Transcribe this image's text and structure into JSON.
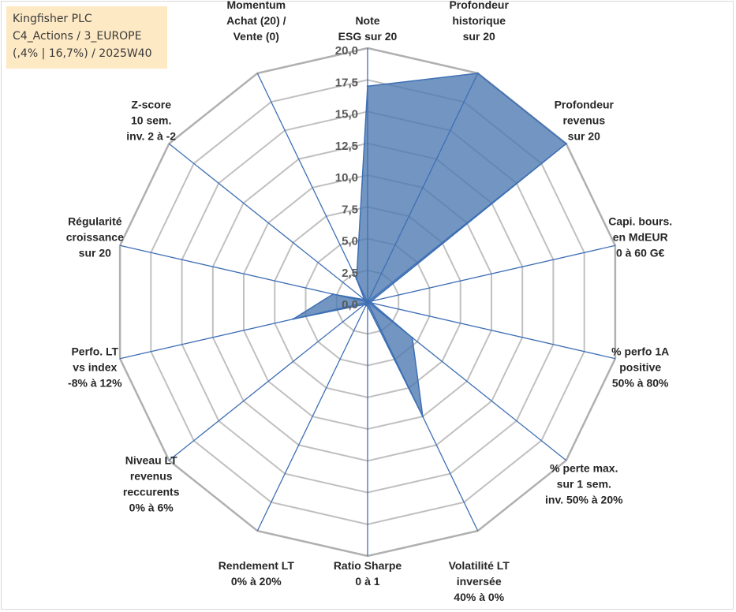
{
  "info_box": {
    "line1": "Kingfisher PLC",
    "line2": "C4_Actions / 3_EUROPE",
    "line3": "(,4% | 16,7%) / 2025W40"
  },
  "colors": {
    "fill": "#4a78b0",
    "stroke": "#3e6fb5",
    "spoke": "#3e6fb5",
    "grid": "#c0c0c0",
    "outer_grid": "#b0b0b0"
  },
  "chart_data": {
    "type": "radar",
    "title": "",
    "rmin": 0,
    "rmax": 20,
    "tick_step": 2.5,
    "tick_labels": [
      "0,0",
      "2,5",
      "5,0",
      "7,5",
      "10,0",
      "12,5",
      "15,0",
      "17,5",
      "20,0"
    ],
    "grid": true,
    "axes": [
      {
        "lines": [
          "Note",
          "ESG sur 20"
        ],
        "value": 17.0
      },
      {
        "lines": [
          "Profondeur",
          "historique",
          "sur 20"
        ],
        "value": 20.0
      },
      {
        "lines": [
          "Profondeur",
          "revenus",
          "sur 20"
        ],
        "value": 20.0
      },
      {
        "lines": [
          "Capi. bours.",
          "en MdEUR",
          "0 à 60 G€"
        ],
        "value": 0.3
      },
      {
        "lines": [
          "% perfo 1A",
          "positive",
          "50% à 80%"
        ],
        "value": 0.3
      },
      {
        "lines": [
          "% perte max.",
          "sur 1 sem.",
          "inv. 50% à 20%"
        ],
        "value": 4.5
      },
      {
        "lines": [
          "Volatilité LT",
          "inversée",
          "40% à 0%"
        ],
        "value": 10.0
      },
      {
        "lines": [
          "Ratio Sharpe",
          "0 à 1"
        ],
        "value": 0.3
      },
      {
        "lines": [
          "Rendement LT",
          "0% à 20%"
        ],
        "value": 0.3
      },
      {
        "lines": [
          "Niveau LT",
          "revenus",
          "reccurents",
          "0% à 6%"
        ],
        "value": 0.3
      },
      {
        "lines": [
          "Perfo. LT",
          "vs index",
          "-8% à 12%"
        ],
        "value": 6.0
      },
      {
        "lines": [
          "Régularité",
          "croissance",
          "sur 20"
        ],
        "value": 2.8
      },
      {
        "lines": [
          "Z-score",
          "10 sem.",
          "inv. 2 à -2"
        ],
        "value": 0.3
      },
      {
        "lines": [
          "Momentum",
          "Achat (20) /",
          "Vente (0)"
        ],
        "value": 2.0
      }
    ]
  }
}
